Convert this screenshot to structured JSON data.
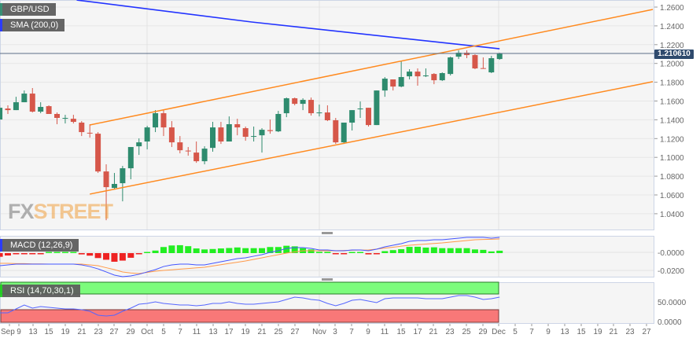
{
  "legends": {
    "symbol": "GBP/USD",
    "sma": "SMA (200,0)",
    "macd": "MACD (12,26,9)",
    "rsi": "RSI (14,70,30,1)"
  },
  "watermark": {
    "part1": "FX",
    "part2": "STREET"
  },
  "current_price_label": "1.210610",
  "colors": {
    "up": "#2e8b6e",
    "down": "#d6574a",
    "sma": "#2233ff",
    "channel": "#ff8a1f",
    "macd": "#4455ff",
    "signal": "#ff9a4a",
    "hist_up": "#22ee22",
    "hist_down": "#ee2222",
    "rsi": "#5566ff",
    "overbought": "#7cfc7c",
    "oversold": "#f87878",
    "price_tag": "#2f4a6d"
  },
  "chart_data": {
    "type": "candlestick",
    "price_axis": {
      "ylim": [
        1.026,
        1.266
      ],
      "ticks": [
        "1.2600",
        "1.2400",
        "1.2200",
        "1.2000",
        "1.1800",
        "1.1600",
        "1.1400",
        "1.1200",
        "1.1000",
        "1.0800",
        "1.0600",
        "1.0400"
      ],
      "tick_values": [
        1.26,
        1.24,
        1.22,
        1.2,
        1.18,
        1.16,
        1.14,
        1.12,
        1.1,
        1.08,
        1.06,
        1.04
      ]
    },
    "x_labels": [
      "Sep",
      "9",
      "13",
      "15",
      "19",
      "21",
      "23",
      "27",
      "29",
      "Oct",
      "5",
      "7",
      "11",
      "13",
      "17",
      "19",
      "21",
      "25",
      "27",
      "Nov",
      "3",
      "7",
      "9",
      "11",
      "15",
      "17",
      "21",
      "23",
      "25",
      "29",
      "Dec",
      "5",
      "7",
      "9",
      "13",
      "15",
      "19",
      "21",
      "23",
      "27"
    ],
    "current_price": 1.21061,
    "ohlc": [
      [
        1.1403,
        1.1554,
        1.1403,
        1.1528
      ],
      [
        1.152,
        1.1554,
        1.1462,
        1.1503
      ],
      [
        1.1503,
        1.1645,
        1.1503,
        1.1587
      ],
      [
        1.1587,
        1.1712,
        1.1587,
        1.1679
      ],
      [
        1.1679,
        1.1738,
        1.1478,
        1.1487
      ],
      [
        1.1487,
        1.1587,
        1.147,
        1.1537
      ],
      [
        1.1545,
        1.1554,
        1.1462,
        1.1462
      ],
      [
        1.1462,
        1.1478,
        1.1353,
        1.142
      ],
      [
        1.1415,
        1.1453,
        1.1361,
        1.142
      ],
      [
        1.1411,
        1.1453,
        1.1361,
        1.1378
      ],
      [
        1.137,
        1.1386,
        1.1227,
        1.1269
      ],
      [
        1.1262,
        1.1353,
        1.121,
        1.1258
      ],
      [
        1.1252,
        1.1269,
        1.0834,
        1.085
      ],
      [
        1.085,
        1.0926,
        1.0331,
        1.0683
      ],
      [
        1.0675,
        1.0834,
        1.0658,
        1.0717
      ],
      [
        1.0725,
        1.0909,
        1.0532,
        1.0884
      ],
      [
        1.0884,
        1.111,
        1.0767,
        1.111
      ],
      [
        1.1118,
        1.1202,
        1.1026,
        1.116
      ],
      [
        1.1169,
        1.1336,
        1.1085,
        1.1319
      ],
      [
        1.1319,
        1.1503,
        1.1269,
        1.147
      ],
      [
        1.147,
        1.1503,
        1.1227,
        1.1319
      ],
      [
        1.1319,
        1.1386,
        1.111,
        1.116
      ],
      [
        1.116,
        1.1227,
        1.1043,
        1.1076
      ],
      [
        1.1072,
        1.111,
        1.1018,
        1.1068
      ],
      [
        1.1051,
        1.1169,
        1.0942,
        1.0959
      ],
      [
        1.0959,
        1.1118,
        1.0926,
        1.1093
      ],
      [
        1.1101,
        1.1378,
        1.106,
        1.1319
      ],
      [
        1.1319,
        1.1378,
        1.1143,
        1.1169
      ],
      [
        1.1169,
        1.1436,
        1.1169,
        1.1353
      ],
      [
        1.1353,
        1.1411,
        1.1235,
        1.1319
      ],
      [
        1.1311,
        1.1328,
        1.1177,
        1.1219
      ],
      [
        1.1222,
        1.1328,
        1.1169,
        1.1227
      ],
      [
        1.1235,
        1.1311,
        1.1051,
        1.1294
      ],
      [
        1.129,
        1.1403,
        1.1252,
        1.128
      ],
      [
        1.1277,
        1.1495,
        1.1269,
        1.1462
      ],
      [
        1.147,
        1.1637,
        1.1428,
        1.1629
      ],
      [
        1.1629,
        1.1637,
        1.1554,
        1.157
      ],
      [
        1.157,
        1.1629,
        1.1503,
        1.1612
      ],
      [
        1.1612,
        1.1637,
        1.1445,
        1.147
      ],
      [
        1.1474,
        1.1562,
        1.1436,
        1.1478
      ],
      [
        1.1478,
        1.1554,
        1.1386,
        1.1395
      ],
      [
        1.1395,
        1.142,
        1.1143,
        1.116
      ],
      [
        1.116,
        1.137,
        1.1143,
        1.137
      ],
      [
        1.137,
        1.1503,
        1.1286,
        1.1503
      ],
      [
        1.1516,
        1.1595,
        1.142,
        1.152
      ],
      [
        1.1528,
        1.1528,
        1.1328,
        1.1344
      ],
      [
        1.1344,
        1.1712,
        1.1344,
        1.1712
      ],
      [
        1.1712,
        1.1855,
        1.1645,
        1.1838
      ],
      [
        1.183,
        1.183,
        1.1712,
        1.1754
      ],
      [
        1.1754,
        1.2022,
        1.1746,
        1.1855
      ],
      [
        1.1863,
        1.1939,
        1.183,
        1.1913
      ],
      [
        1.1913,
        1.1947,
        1.1763,
        1.1863
      ],
      [
        1.1868,
        1.1947,
        1.1855,
        1.1872
      ],
      [
        1.1888,
        1.1897,
        1.1779,
        1.1821
      ],
      [
        1.1821,
        1.1905,
        1.1813,
        1.1897
      ],
      [
        1.1888,
        1.2072,
        1.1872,
        1.2064
      ],
      [
        1.2072,
        1.2139,
        1.2047,
        1.2114
      ],
      [
        1.2114,
        1.2139,
        1.2056,
        1.2089
      ],
      [
        1.2089,
        1.2098,
        1.1939,
        1.1947
      ],
      [
        1.195,
        1.2064,
        1.1947,
        1.1947
      ],
      [
        1.1905,
        1.2081,
        1.1897,
        1.2056
      ],
      [
        1.2047,
        1.2114,
        1.2039,
        1.2106
      ]
    ],
    "sma200": [
      [
        9.4,
        1.2675
      ],
      [
        30.75,
        1.2441
      ],
      [
        61,
        1.2156
      ]
    ],
    "channel": {
      "upper": [
        [
          11,
          1.1345
        ],
        [
          79.7,
          1.2575
        ]
      ],
      "lower": [
        [
          11,
          1.0609
        ],
        [
          79.7,
          1.1806
        ]
      ]
    },
    "macd_panel": {
      "ticks": [
        "-0.0000",
        "-0.0200"
      ],
      "tick_values": [
        0,
        -0.02
      ],
      "macd": [
        -0.0148,
        -0.0139,
        -0.013,
        -0.013,
        -0.013,
        -0.013,
        -0.013,
        -0.013,
        -0.013,
        -0.013,
        -0.0139,
        -0.0157,
        -0.0183,
        -0.0217,
        -0.0252,
        -0.027,
        -0.0261,
        -0.0243,
        -0.0217,
        -0.0191,
        -0.0157,
        -0.0139,
        -0.013,
        -0.013,
        -0.0139,
        -0.0139,
        -0.0122,
        -0.0104,
        -0.0087,
        -0.007,
        -0.0061,
        -0.0043,
        -0.0026,
        0,
        0.0017,
        0.0043,
        0.0052,
        0.0052,
        0.0043,
        0.0026,
        0.0026,
        0.0017,
        0.0017,
        0.0026,
        0.0026,
        0.0017,
        0.0035,
        0.0061,
        0.0078,
        0.0096,
        0.0122,
        0.013,
        0.013,
        0.0139,
        0.0139,
        0.0148,
        0.0157,
        0.0165,
        0.0165,
        0.0165,
        0.0157,
        0.0165
      ],
      "signal": [
        -0.0122,
        -0.0122,
        -0.0125,
        -0.0125,
        -0.0128,
        -0.0128,
        -0.013,
        -0.013,
        -0.013,
        -0.013,
        -0.013,
        -0.0139,
        -0.0148,
        -0.017,
        -0.0191,
        -0.0217,
        -0.0228,
        -0.0235,
        -0.0222,
        -0.0209,
        -0.02,
        -0.0193,
        -0.0186,
        -0.0179,
        -0.0172,
        -0.0165,
        -0.0151,
        -0.0137,
        -0.0123,
        -0.011,
        -0.0096,
        -0.0078,
        -0.0061,
        -0.0043,
        -0.0026,
        -0.0009,
        0.0004,
        0.0017,
        0.0017,
        0.0017,
        0.0017,
        0.0019,
        0.0021,
        0.0023,
        0.0025,
        0.0026,
        0.0036,
        0.0047,
        0.0057,
        0.0068,
        0.0078,
        0.0085,
        0.0091,
        0.0098,
        0.0104,
        0.0113,
        0.0122,
        0.013,
        0.0139,
        0.0142,
        0.0145,
        0.0148
      ]
    },
    "rsi_panel": {
      "ticks": [
        "50.0000",
        "0.0000"
      ],
      "tick_values": [
        50,
        0
      ],
      "overbought": 70,
      "oversold": 30,
      "rsi": [
        22,
        22,
        32,
        42,
        34,
        38,
        36,
        34,
        32,
        32,
        30,
        26,
        16,
        14,
        16,
        26,
        34,
        44,
        46,
        50,
        46,
        44,
        42,
        42,
        40,
        42,
        46,
        46,
        50,
        46,
        44,
        44,
        46,
        48,
        50,
        56,
        62,
        60,
        56,
        54,
        46,
        40,
        46,
        54,
        56,
        52,
        48,
        58,
        60,
        60,
        60,
        60,
        58,
        58,
        58,
        62,
        66,
        66,
        62,
        56,
        58,
        62
      ]
    }
  }
}
